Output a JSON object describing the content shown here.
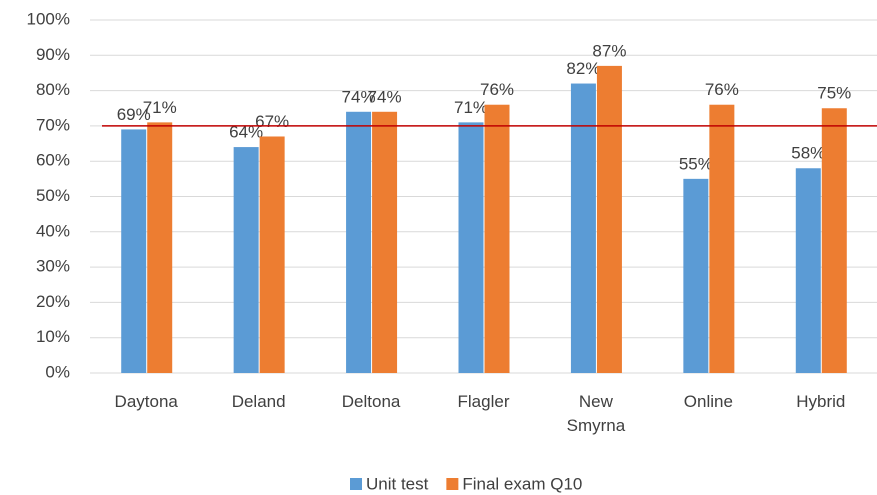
{
  "chart_data": {
    "type": "bar",
    "categories": [
      "Daytona",
      "Deland",
      "Deltona",
      "Flagler",
      "New Smyrna",
      "Online",
      "Hybrid"
    ],
    "series": [
      {
        "name": "Unit test",
        "color": "#5b9bd5",
        "values": [
          69,
          64,
          74,
          71,
          82,
          55,
          58
        ],
        "value_labels": [
          "69%",
          "64%",
          "74%",
          "71%",
          "82%",
          "55%",
          "58%"
        ]
      },
      {
        "name": "Final exam Q10",
        "color": "#ed7d31",
        "values": [
          71,
          67,
          74,
          76,
          87,
          76,
          75
        ],
        "value_labels": [
          "71%",
          "67%",
          "74%",
          "76%",
          "87%",
          "76%",
          "75%"
        ]
      }
    ],
    "ylim": [
      0,
      100
    ],
    "yticks": [
      {
        "value": 0,
        "label": "0%"
      },
      {
        "value": 10,
        "label": "10%"
      },
      {
        "value": 20,
        "label": "20%"
      },
      {
        "value": 30,
        "label": "30%"
      },
      {
        "value": 40,
        "label": "40%"
      },
      {
        "value": 50,
        "label": "50%"
      },
      {
        "value": 60,
        "label": "60%"
      },
      {
        "value": 70,
        "label": "70%"
      },
      {
        "value": 80,
        "label": "80%"
      },
      {
        "value": 90,
        "label": "90%"
      },
      {
        "value": 100,
        "label": "100%"
      }
    ],
    "grid": true,
    "reference_line": {
      "value": 70,
      "color": "#c00000"
    },
    "legend": "bottom"
  }
}
